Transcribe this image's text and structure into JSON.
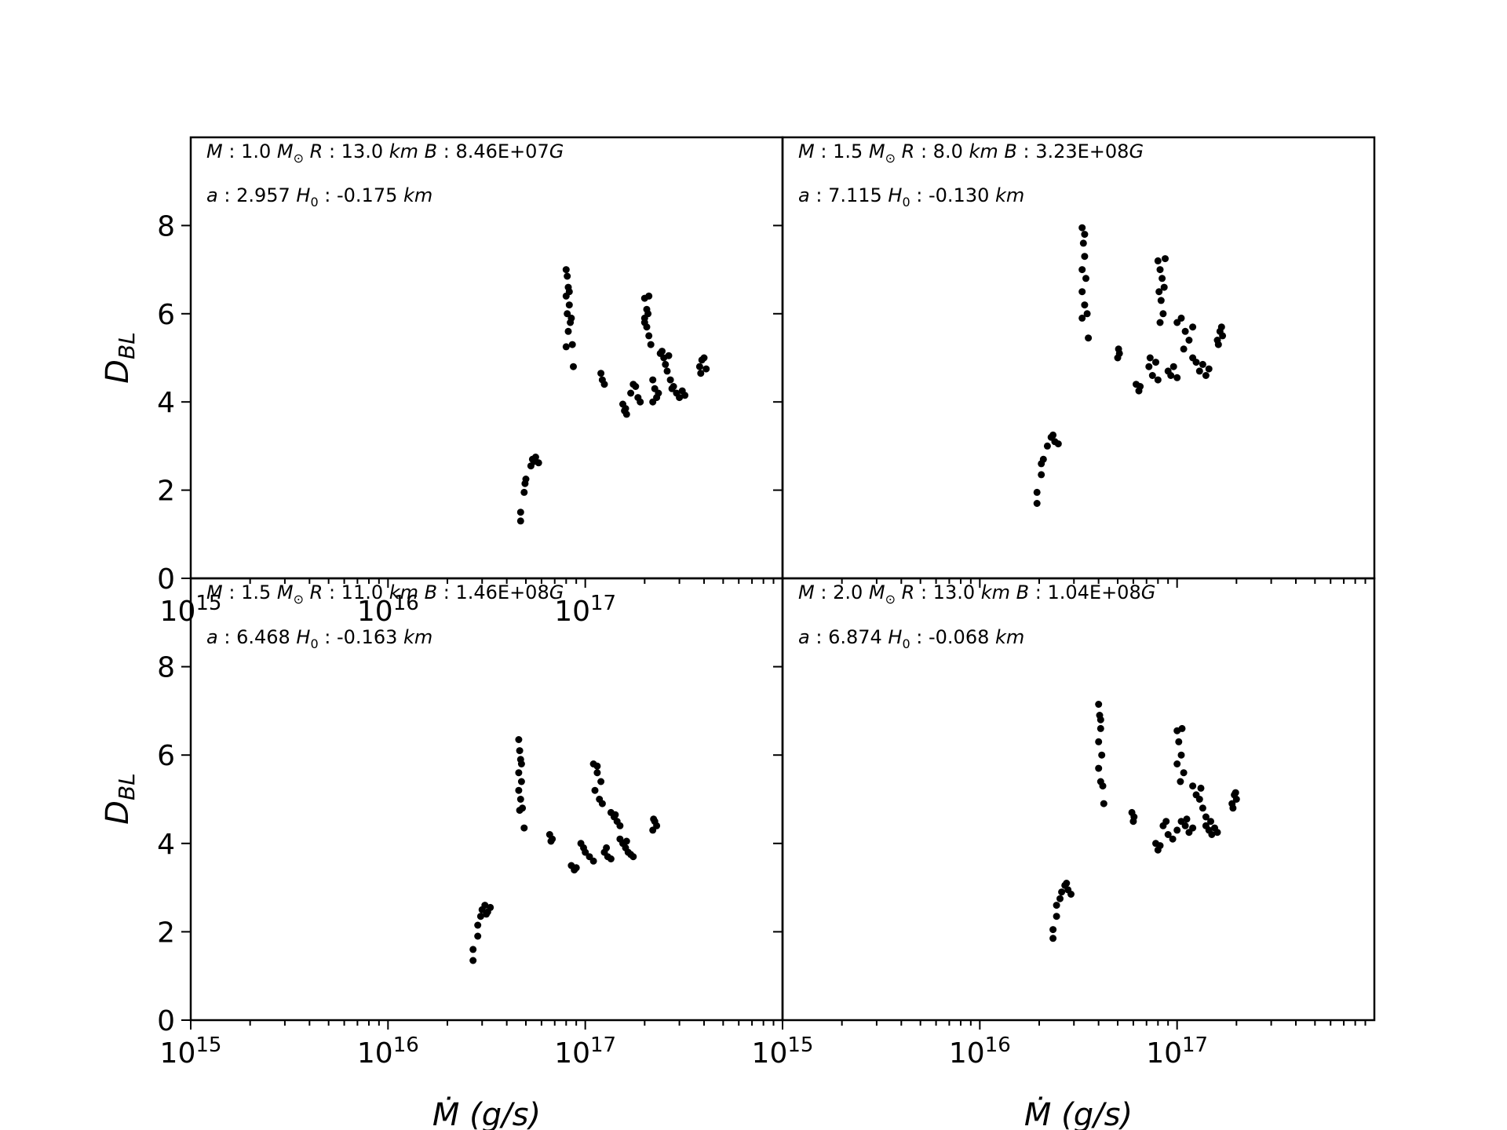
{
  "figure": {
    "background": "#ffffff",
    "marker_color": "#000000"
  },
  "chart_data": [
    {
      "type": "scatter",
      "xscale": "log",
      "xlim": [
        1000000000000000.0,
        1e+18
      ],
      "ylim": [
        0,
        10
      ],
      "x_ticks": [
        {
          "base": "10",
          "exp": "15"
        },
        {
          "base": "10",
          "exp": "16"
        },
        {
          "base": "10",
          "exp": "17"
        }
      ],
      "y_ticks": [
        "0",
        "2",
        "4",
        "6",
        "8"
      ],
      "ylabel": {
        "main": "D",
        "sub": "BL"
      },
      "xlabel": "",
      "annotation": {
        "line1": {
          "M": "1.0",
          "R": "13.0",
          "B": "8.46E+07"
        },
        "line2": {
          "a": "2.957",
          "H0": "-0.175"
        }
      },
      "points": [
        [
          4.7e+16,
          1.3
        ],
        [
          4.7e+16,
          1.5
        ],
        [
          4.9e+16,
          1.95
        ],
        [
          4.95e+16,
          2.15
        ],
        [
          5e+16,
          2.25
        ],
        [
          5.3e+16,
          2.55
        ],
        [
          5.5e+16,
          2.65
        ],
        [
          5.6e+16,
          2.75
        ],
        [
          5.8e+16,
          2.62
        ],
        [
          5.4e+16,
          2.7
        ],
        [
          8e+16,
          7.0
        ],
        [
          8.1e+16,
          6.85
        ],
        [
          8.2e+16,
          6.6
        ],
        [
          8e+16,
          6.4
        ],
        [
          8.3e+16,
          6.2
        ],
        [
          8.1e+16,
          6.0
        ],
        [
          8.4e+16,
          5.8
        ],
        [
          8.2e+16,
          5.6
        ],
        [
          8e+16,
          5.25
        ],
        [
          8.6e+16,
          5.3
        ],
        [
          8.7e+16,
          4.8
        ],
        [
          8.3e+16,
          6.5
        ],
        [
          8.5e+16,
          5.9
        ],
        [
          1.2e+17,
          4.65
        ],
        [
          1.22e+17,
          4.5
        ],
        [
          1.25e+17,
          4.4
        ],
        [
          1.55e+17,
          3.95
        ],
        [
          1.6e+17,
          3.85
        ],
        [
          1.62e+17,
          3.72
        ],
        [
          1.58e+17,
          3.8
        ],
        [
          1.7e+17,
          4.2
        ],
        [
          1.8e+17,
          4.35
        ],
        [
          1.85e+17,
          4.1
        ],
        [
          1.9e+17,
          4.0
        ],
        [
          1.75e+17,
          4.4
        ],
        [
          2e+17,
          6.35
        ],
        [
          2.05e+17,
          6.1
        ],
        [
          2.1e+17,
          6.4
        ],
        [
          2e+17,
          5.9
        ],
        [
          2.05e+17,
          5.7
        ],
        [
          2.1e+17,
          5.5
        ],
        [
          2.15e+17,
          5.3
        ],
        [
          2e+17,
          5.8
        ],
        [
          2.08e+17,
          6.0
        ],
        [
          2.2e+17,
          4.5
        ],
        [
          2.25e+17,
          4.3
        ],
        [
          2.3e+17,
          4.1
        ],
        [
          2.2e+17,
          4.0
        ],
        [
          2.35e+17,
          4.2
        ],
        [
          2.4e+17,
          5.1
        ],
        [
          2.5e+17,
          5.0
        ],
        [
          2.55e+17,
          4.85
        ],
        [
          2.6e+17,
          4.7
        ],
        [
          2.45e+17,
          5.15
        ],
        [
          2.65e+17,
          5.05
        ],
        [
          2.7e+17,
          4.5
        ],
        [
          2.8e+17,
          4.35
        ],
        [
          2.9e+17,
          4.2
        ],
        [
          3e+17,
          4.1
        ],
        [
          3.1e+17,
          4.25
        ],
        [
          3.2e+17,
          4.15
        ],
        [
          2.75e+17,
          4.3
        ],
        [
          3.8e+17,
          4.8
        ],
        [
          3.9e+17,
          4.95
        ],
        [
          4e+17,
          5.0
        ],
        [
          4.1e+17,
          4.75
        ],
        [
          3.85e+17,
          4.65
        ]
      ]
    },
    {
      "type": "scatter",
      "xscale": "log",
      "xlim": [
        1000000000000000.0,
        1e+18
      ],
      "ylim": [
        0,
        10
      ],
      "x_ticks": [],
      "y_ticks": [],
      "ylabel": {
        "main": "",
        "sub": ""
      },
      "xlabel": "",
      "annotation": {
        "line1": {
          "M": "1.5",
          "R": "8.0",
          "B": "3.23E+08"
        },
        "line2": {
          "a": "7.115",
          "H0": "-0.130"
        }
      },
      "points": [
        [
          1.95e+16,
          1.7
        ],
        [
          1.95e+16,
          1.95
        ],
        [
          2.05e+16,
          2.35
        ],
        [
          2.05e+16,
          2.6
        ],
        [
          2.1e+16,
          2.7
        ],
        [
          2.2e+16,
          3.0
        ],
        [
          2.3e+16,
          3.2
        ],
        [
          2.4e+16,
          3.1
        ],
        [
          2.5e+16,
          3.05
        ],
        [
          2.35e+16,
          3.25
        ],
        [
          3.3e+16,
          7.95
        ],
        [
          3.35e+16,
          7.6
        ],
        [
          3.4e+16,
          7.3
        ],
        [
          3.3e+16,
          7.0
        ],
        [
          3.45e+16,
          6.8
        ],
        [
          3.3e+16,
          6.5
        ],
        [
          3.4e+16,
          6.2
        ],
        [
          3.3e+16,
          5.9
        ],
        [
          3.5e+16,
          6.0
        ],
        [
          3.55e+16,
          5.45
        ],
        [
          3.4e+16,
          7.8
        ],
        [
          5e+16,
          5.0
        ],
        [
          5.05e+16,
          5.2
        ],
        [
          5.1e+16,
          5.1
        ],
        [
          6.2e+16,
          4.4
        ],
        [
          6.4e+16,
          4.25
        ],
        [
          6.5e+16,
          4.35
        ],
        [
          7.2e+16,
          4.8
        ],
        [
          7.5e+16,
          4.6
        ],
        [
          7.8e+16,
          4.9
        ],
        [
          8e+16,
          4.5
        ],
        [
          7.3e+16,
          5.0
        ],
        [
          8e+16,
          7.2
        ],
        [
          8.2e+16,
          7.0
        ],
        [
          8.4e+16,
          6.8
        ],
        [
          8.1e+16,
          6.5
        ],
        [
          8.3e+16,
          6.3
        ],
        [
          8.5e+16,
          6.0
        ],
        [
          8.2e+16,
          5.8
        ],
        [
          8.6e+16,
          6.6
        ],
        [
          8.7e+16,
          7.25
        ],
        [
          9e+16,
          4.7
        ],
        [
          9.3e+16,
          4.6
        ],
        [
          9.6e+16,
          4.8
        ],
        [
          1e+17,
          4.55
        ],
        [
          1e+17,
          5.8
        ],
        [
          1.05e+17,
          5.9
        ],
        [
          1.1e+17,
          5.6
        ],
        [
          1.15e+17,
          5.4
        ],
        [
          1.2e+17,
          5.7
        ],
        [
          1.08e+17,
          5.2
        ],
        [
          1.2e+17,
          5.0
        ],
        [
          1.25e+17,
          4.9
        ],
        [
          1.3e+17,
          4.7
        ],
        [
          1.35e+17,
          4.85
        ],
        [
          1.4e+17,
          4.6
        ],
        [
          1.45e+17,
          4.75
        ],
        [
          1.6e+17,
          5.4
        ],
        [
          1.65e+17,
          5.6
        ],
        [
          1.7e+17,
          5.5
        ],
        [
          1.62e+17,
          5.3
        ],
        [
          1.68e+17,
          5.7
        ]
      ]
    },
    {
      "type": "scatter",
      "xscale": "log",
      "xlim": [
        1000000000000000.0,
        1e+18
      ],
      "ylim": [
        0,
        10
      ],
      "x_ticks": [
        {
          "base": "10",
          "exp": "15"
        },
        {
          "base": "10",
          "exp": "16"
        },
        {
          "base": "10",
          "exp": "17"
        }
      ],
      "y_ticks": [
        "0",
        "2",
        "4",
        "6",
        "8"
      ],
      "ylabel": {
        "main": "D",
        "sub": "BL"
      },
      "xlabel": "Ṁ (g/s)",
      "annotation": {
        "line1": {
          "M": "1.5",
          "R": "11.0",
          "B": "1.46E+08"
        },
        "line2": {
          "a": "6.468",
          "H0": "-0.163"
        }
      },
      "points": [
        [
          2.7e+16,
          1.35
        ],
        [
          2.7e+16,
          1.6
        ],
        [
          2.85e+16,
          1.9
        ],
        [
          2.85e+16,
          2.15
        ],
        [
          2.95e+16,
          2.35
        ],
        [
          3e+16,
          2.5
        ],
        [
          3.1e+16,
          2.6
        ],
        [
          3.2e+16,
          2.45
        ],
        [
          3.3e+16,
          2.55
        ],
        [
          3.15e+16,
          2.4
        ],
        [
          4.6e+16,
          6.35
        ],
        [
          4.65e+16,
          6.1
        ],
        [
          4.7e+16,
          5.9
        ],
        [
          4.6e+16,
          5.6
        ],
        [
          4.75e+16,
          5.4
        ],
        [
          4.6e+16,
          5.2
        ],
        [
          4.7e+16,
          5.0
        ],
        [
          4.8e+16,
          4.8
        ],
        [
          4.65e+16,
          4.75
        ],
        [
          4.9e+16,
          4.35
        ],
        [
          4.75e+16,
          5.8
        ],
        [
          6.6e+16,
          4.2
        ],
        [
          6.7e+16,
          4.05
        ],
        [
          6.8e+16,
          4.1
        ],
        [
          8.5e+16,
          3.5
        ],
        [
          8.8e+16,
          3.4
        ],
        [
          9e+16,
          3.45
        ],
        [
          9.5e+16,
          4.0
        ],
        [
          1e+17,
          3.8
        ],
        [
          1.05e+17,
          3.7
        ],
        [
          1.1e+17,
          3.6
        ],
        [
          9.8e+16,
          3.9
        ],
        [
          1.1e+17,
          5.8
        ],
        [
          1.15e+17,
          5.6
        ],
        [
          1.2e+17,
          5.4
        ],
        [
          1.12e+17,
          5.2
        ],
        [
          1.18e+17,
          5.0
        ],
        [
          1.22e+17,
          4.9
        ],
        [
          1.15e+17,
          5.75
        ],
        [
          1.25e+17,
          3.8
        ],
        [
          1.3e+17,
          3.7
        ],
        [
          1.35e+17,
          3.65
        ],
        [
          1.28e+17,
          3.9
        ],
        [
          1.35e+17,
          4.7
        ],
        [
          1.4e+17,
          4.6
        ],
        [
          1.45e+17,
          4.5
        ],
        [
          1.5e+17,
          4.4
        ],
        [
          1.42e+17,
          4.65
        ],
        [
          1.5e+17,
          4.1
        ],
        [
          1.55e+17,
          4.0
        ],
        [
          1.6e+17,
          3.9
        ],
        [
          1.65e+17,
          3.8
        ],
        [
          1.7e+17,
          3.75
        ],
        [
          1.75e+17,
          3.7
        ],
        [
          1.62e+17,
          4.05
        ],
        [
          2.2e+17,
          4.3
        ],
        [
          2.25e+17,
          4.5
        ],
        [
          2.3e+17,
          4.4
        ],
        [
          2.22e+17,
          4.55
        ]
      ]
    },
    {
      "type": "scatter",
      "xscale": "log",
      "xlim": [
        1000000000000000.0,
        1e+18
      ],
      "ylim": [
        0,
        10
      ],
      "x_ticks": [
        {
          "base": "10",
          "exp": "15"
        },
        {
          "base": "10",
          "exp": "16"
        },
        {
          "base": "10",
          "exp": "17"
        }
      ],
      "y_ticks": [],
      "ylabel": {
        "main": "",
        "sub": ""
      },
      "xlabel": "Ṁ (g/s)",
      "annotation": {
        "line1": {
          "M": "2.0",
          "R": "13.0",
          "B": "1.04E+08"
        },
        "line2": {
          "a": "6.874",
          "H0": "-0.068"
        }
      },
      "points": [
        [
          2.35e+16,
          1.85
        ],
        [
          2.35e+16,
          2.05
        ],
        [
          2.45e+16,
          2.35
        ],
        [
          2.45e+16,
          2.6
        ],
        [
          2.55e+16,
          2.75
        ],
        [
          2.6e+16,
          2.9
        ],
        [
          2.7e+16,
          3.05
        ],
        [
          2.8e+16,
          2.95
        ],
        [
          2.9e+16,
          2.85
        ],
        [
          2.75e+16,
          3.1
        ],
        [
          4e+16,
          7.15
        ],
        [
          4.05e+16,
          6.9
        ],
        [
          4.1e+16,
          6.6
        ],
        [
          4e+16,
          6.3
        ],
        [
          4.15e+16,
          6.0
        ],
        [
          4e+16,
          5.7
        ],
        [
          4.1e+16,
          5.4
        ],
        [
          4.2e+16,
          5.3
        ],
        [
          4.25e+16,
          4.9
        ],
        [
          4.1e+16,
          6.8
        ],
        [
          5.9e+16,
          4.7
        ],
        [
          6e+16,
          4.5
        ],
        [
          6.05e+16,
          4.6
        ],
        [
          7.8e+16,
          4.0
        ],
        [
          8e+16,
          3.85
        ],
        [
          8.2e+16,
          3.95
        ],
        [
          8.5e+16,
          4.4
        ],
        [
          9e+16,
          4.2
        ],
        [
          9.5e+16,
          4.1
        ],
        [
          1e+17,
          4.3
        ],
        [
          8.8e+16,
          4.5
        ],
        [
          1e+17,
          6.55
        ],
        [
          1.02e+17,
          6.3
        ],
        [
          1.05e+17,
          6.0
        ],
        [
          1e+17,
          5.8
        ],
        [
          1.08e+17,
          5.6
        ],
        [
          1.04e+17,
          5.4
        ],
        [
          1.06e+17,
          6.6
        ],
        [
          1.05e+17,
          4.5
        ],
        [
          1.1e+17,
          4.4
        ],
        [
          1.15e+17,
          4.25
        ],
        [
          1.2e+17,
          4.35
        ],
        [
          1.12e+17,
          4.55
        ],
        [
          1.2e+17,
          5.3
        ],
        [
          1.25e+17,
          5.1
        ],
        [
          1.3e+17,
          5.0
        ],
        [
          1.35e+17,
          4.8
        ],
        [
          1.4e+17,
          4.6
        ],
        [
          1.32e+17,
          5.25
        ],
        [
          1.4e+17,
          4.4
        ],
        [
          1.45e+17,
          4.3
        ],
        [
          1.5e+17,
          4.2
        ],
        [
          1.55e+17,
          4.35
        ],
        [
          1.6e+17,
          4.25
        ],
        [
          1.48e+17,
          4.5
        ],
        [
          1.9e+17,
          4.9
        ],
        [
          1.95e+17,
          5.1
        ],
        [
          2e+17,
          5.0
        ],
        [
          1.92e+17,
          4.8
        ],
        [
          1.98e+17,
          5.15
        ]
      ]
    }
  ]
}
